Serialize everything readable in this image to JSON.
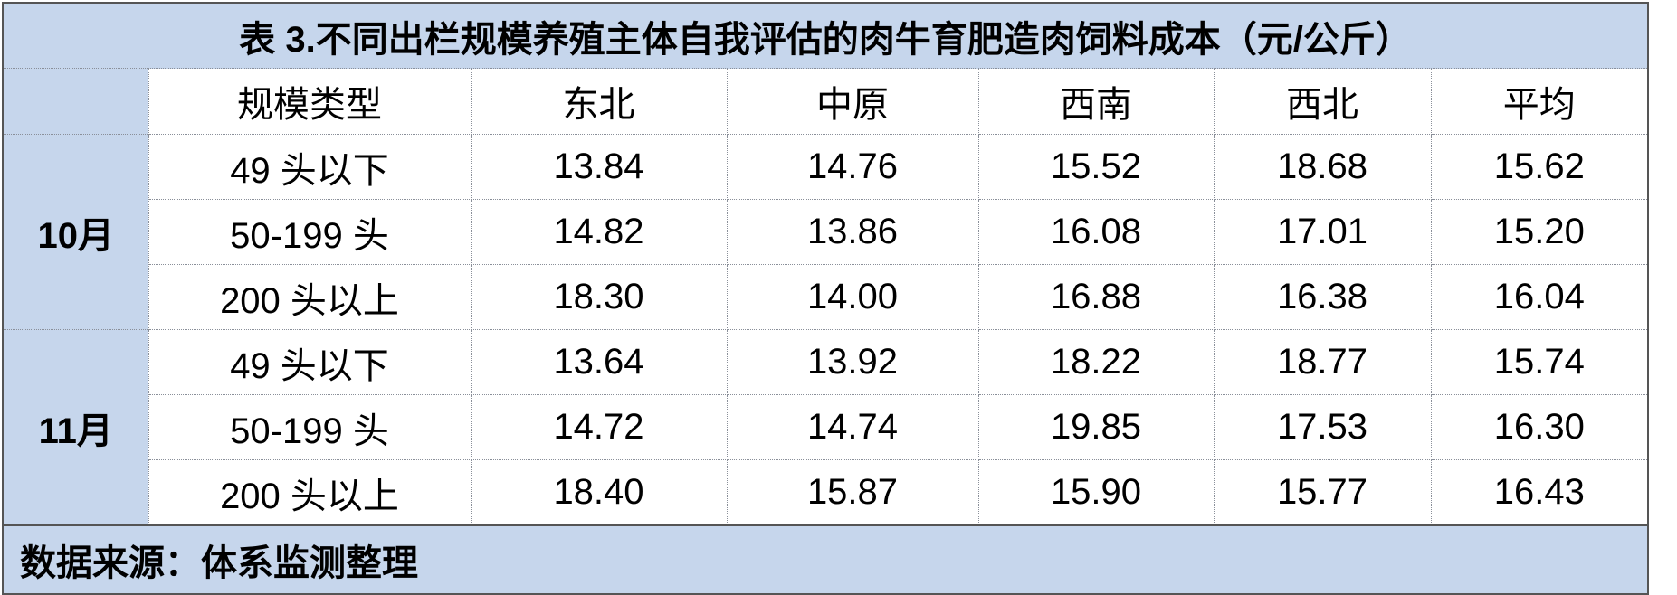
{
  "title": "表 3.不同出栏规模养殖主体自我评估的肉牛育肥造肉饲料成本（元/公斤）",
  "header": [
    "规模类型",
    "东北",
    "中原",
    "西南",
    "西北",
    "平均"
  ],
  "groups": [
    {
      "month": "10月",
      "rows": [
        {
          "size": "49 头以下",
          "values": [
            "13.84",
            "14.76",
            "15.52",
            "18.68",
            "15.62"
          ]
        },
        {
          "size": "50-199 头",
          "values": [
            "14.82",
            "13.86",
            "16.08",
            "17.01",
            "15.20"
          ]
        },
        {
          "size": "200 头以上",
          "values": [
            "18.30",
            "14.00",
            "16.88",
            "16.38",
            "16.04"
          ]
        }
      ]
    },
    {
      "month": "11月",
      "rows": [
        {
          "size": "49 头以下",
          "values": [
            "13.64",
            "13.92",
            "18.22",
            "18.77",
            "15.74"
          ]
        },
        {
          "size": "50-199 头",
          "values": [
            "14.72",
            "14.74",
            "19.85",
            "17.53",
            "16.30"
          ]
        },
        {
          "size": "200 头以上",
          "values": [
            "18.40",
            "15.87",
            "15.90",
            "15.77",
            "16.43"
          ]
        }
      ]
    }
  ],
  "footer": "数据来源：体系监测整理",
  "colors": {
    "header_bg": "#c6d6ec",
    "border": "#555555"
  }
}
